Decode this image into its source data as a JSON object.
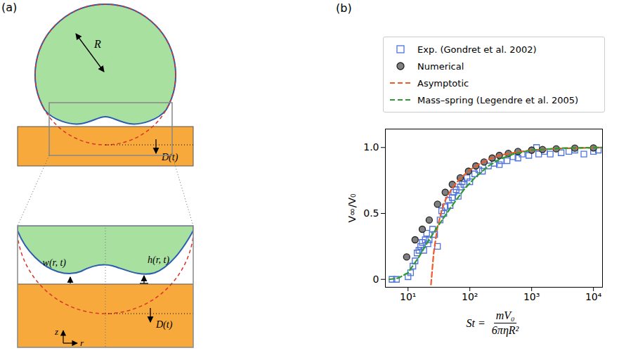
{
  "diagram": {
    "panel_label": "(a)",
    "labels": {
      "radius": "R",
      "displacement": "D(t)",
      "film": "w(r, t)",
      "drop": "h(r, t)",
      "axis_z": "z",
      "axis_r": "r"
    }
  },
  "chart_data": {
    "type": "scatter",
    "panel_label": "(b)",
    "xlabel": {
      "text": "St =",
      "numerator": "mV₀",
      "denominator": "6πηR²"
    },
    "ylabel": "V∞/V₀",
    "log": "x",
    "xlim": [
      4.3,
      14000
    ],
    "xticks": [
      {
        "value": 10,
        "label": "10¹"
      },
      {
        "value": 100,
        "label": "10²"
      },
      {
        "value": 1000,
        "label": "10³"
      },
      {
        "value": 10000,
        "label": "10⁴"
      }
    ],
    "ylim": [
      -0.06,
      1.14
    ],
    "yticks": [
      0,
      0.5,
      {
        "value": 1,
        "label": "1.0"
      }
    ],
    "legend": "top",
    "series": [
      {
        "name": "Exp. (Gondret et al. 2002)",
        "type": "scatter",
        "marker": "square",
        "color": "#4f73d9",
        "x": [
          5.5,
          6.5,
          10,
          11,
          12,
          13,
          14,
          15,
          16,
          17,
          18,
          19,
          20,
          21,
          22,
          25,
          27,
          30,
          33,
          35,
          38,
          40,
          45,
          48,
          52,
          55,
          60,
          65,
          70,
          75,
          80,
          90,
          100,
          120,
          140,
          160,
          200,
          250,
          300,
          320,
          400,
          500,
          600,
          700,
          900,
          1200,
          1300,
          1600,
          2000,
          3000,
          4000,
          5000,
          7000,
          10000,
          12000
        ],
        "values": [
          0,
          0,
          0.02,
          0.05,
          0.1,
          0.14,
          0.2,
          0.22,
          0.25,
          0.28,
          0.22,
          0.3,
          0.35,
          0.27,
          0.3,
          0.38,
          0.34,
          0.25,
          0.45,
          0.52,
          0.5,
          0.55,
          0.6,
          0.56,
          0.62,
          0.66,
          0.68,
          0.63,
          0.7,
          0.74,
          0.72,
          0.77,
          0.74,
          0.8,
          0.83,
          0.82,
          0.86,
          0.88,
          0.87,
          0.9,
          0.9,
          0.93,
          0.92,
          0.95,
          0.94,
          1.0,
          0.95,
          0.97,
          0.95,
          0.96,
          0.97,
          0.98,
          0.95,
          0.97,
          0.98
        ]
      },
      {
        "name": "Numerical",
        "type": "scatter",
        "marker": "circle",
        "color": "#808080",
        "x": [
          9.5,
          13,
          17,
          22,
          30,
          40,
          52,
          70,
          95,
          125,
          170,
          230,
          300,
          420,
          600,
          1000,
          1500,
          2500,
          5000,
          10000
        ],
        "values": [
          0.17,
          0.3,
          0.38,
          0.45,
          0.57,
          0.66,
          0.72,
          0.77,
          0.82,
          0.86,
          0.89,
          0.92,
          0.94,
          0.955,
          0.97,
          0.98,
          0.985,
          0.99,
          0.995,
          0.997
        ]
      },
      {
        "name": "Asymptotic",
        "type": "line",
        "line_style": "dashed",
        "color": "#f05a28",
        "x": [
          23.5,
          26,
          30,
          35,
          40,
          50,
          60,
          80,
          100,
          150,
          200,
          300,
          500,
          1000,
          3000,
          10000,
          14000
        ],
        "values": [
          -0.04,
          0.2,
          0.4,
          0.52,
          0.6,
          0.68,
          0.73,
          0.79,
          0.83,
          0.88,
          0.91,
          0.94,
          0.96,
          0.98,
          0.993,
          0.998,
          0.999
        ]
      },
      {
        "name": "Mass–spring (Legendre et al. 2005)",
        "type": "line",
        "line_style": "dashed",
        "color": "#2e9b2e",
        "x": [
          5,
          7,
          10,
          15,
          20,
          30,
          50,
          80,
          120,
          200,
          300,
          500,
          1000,
          3000,
          14000
        ],
        "values": [
          0,
          0.01,
          0.05,
          0.17,
          0.27,
          0.4,
          0.55,
          0.68,
          0.77,
          0.86,
          0.91,
          0.95,
          0.98,
          0.995,
          1.0
        ]
      }
    ]
  }
}
